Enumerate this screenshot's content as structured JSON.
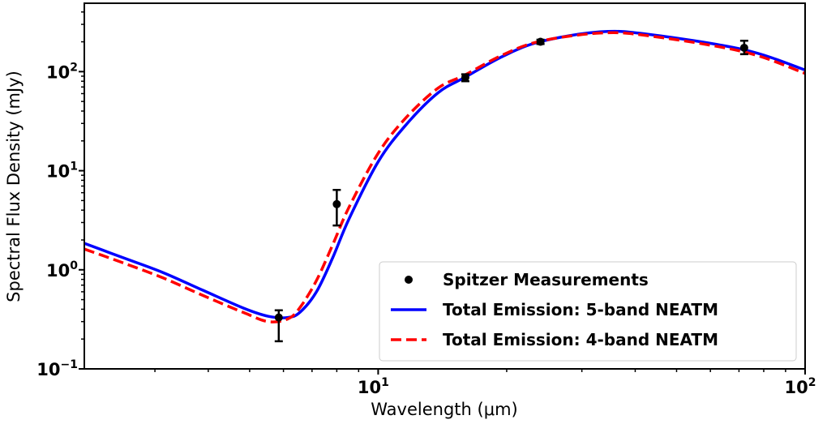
{
  "chart_data": {
    "type": "line",
    "title": "",
    "xlabel": "Wavelength (μm)",
    "ylabel": "Spectral Flux Density (mJy)",
    "xscale": "log",
    "yscale": "log",
    "xlim": [
      2.05,
      100
    ],
    "ylim": [
      0.1,
      490
    ],
    "grid": false,
    "legend_placement": "lower-right",
    "x_ticks": [
      {
        "base": "10",
        "exp": "1",
        "value": 10
      },
      {
        "base": "10",
        "exp": "2",
        "value": 100
      }
    ],
    "y_ticks": [
      {
        "base": "10",
        "exp": "−1",
        "value": 0.1
      },
      {
        "base": "10",
        "exp": "0",
        "value": 1
      },
      {
        "base": "10",
        "exp": "1",
        "value": 10
      },
      {
        "base": "10",
        "exp": "2",
        "value": 100
      }
    ],
    "series": [
      {
        "name": "Spitzer Measurements",
        "kind": "errorbar",
        "color": "#000000",
        "x": [
          5.85,
          8.0,
          16.0,
          24.0,
          72.0
        ],
        "y": [
          0.33,
          4.6,
          87,
          200,
          174
        ],
        "yerr_low": [
          0.19,
          2.8,
          80,
          190,
          150
        ],
        "yerr_high": [
          0.39,
          6.4,
          94,
          210,
          205
        ]
      },
      {
        "name": "Total Emission: 5-band NEATM",
        "kind": "solid",
        "color": "#0000ff",
        "x": [
          2.05,
          2.52,
          3.13,
          3.89,
          4.84,
          5.52,
          6.15,
          6.57,
          7.17,
          7.83,
          8.55,
          10,
          11.6,
          13.8,
          16,
          19.6,
          24,
          33.1,
          43,
          72,
          100
        ],
        "y": [
          1.85,
          1.33,
          0.94,
          0.62,
          0.41,
          0.34,
          0.33,
          0.375,
          0.6,
          1.33,
          3.28,
          12.3,
          28.8,
          61,
          88,
          143,
          201,
          252,
          238,
          166,
          104
        ]
      },
      {
        "name": "Total Emission: 4-band NEATM",
        "kind": "dashed",
        "color": "#ff0000",
        "x": [
          2.05,
          2.52,
          3.13,
          3.89,
          4.84,
          5.52,
          6.15,
          6.57,
          7.17,
          7.83,
          8.55,
          10,
          11.6,
          13.8,
          16,
          19.6,
          24,
          33.1,
          43,
          72,
          100
        ],
        "y": [
          1.62,
          1.18,
          0.83,
          0.55,
          0.37,
          0.3,
          0.32,
          0.42,
          0.78,
          1.8,
          4.3,
          15,
          34,
          68,
          93,
          148,
          203,
          245,
          230,
          158,
          96
        ]
      }
    ]
  }
}
